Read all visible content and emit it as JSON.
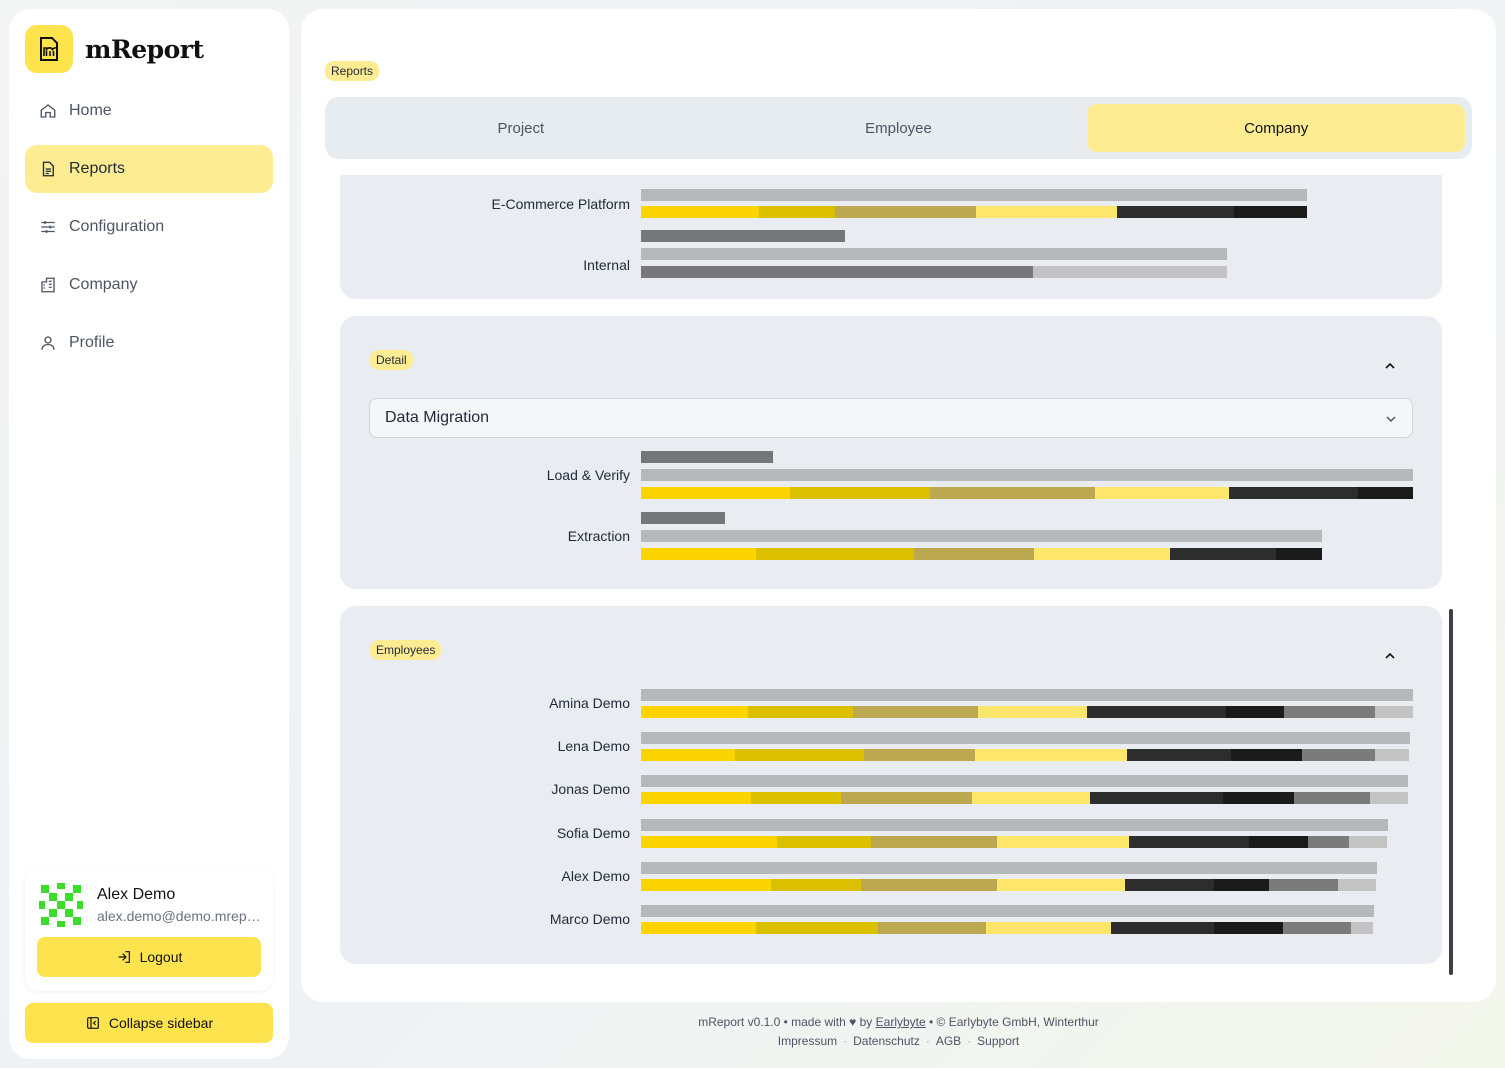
{
  "app": {
    "name": "mReport"
  },
  "sidebar": {
    "items": [
      {
        "label": "Home",
        "icon": "home-icon",
        "active": false
      },
      {
        "label": "Reports",
        "icon": "report-icon",
        "active": true
      },
      {
        "label": "Configuration",
        "icon": "sliders-icon",
        "active": false
      },
      {
        "label": "Company",
        "icon": "building-icon",
        "active": false
      },
      {
        "label": "Profile",
        "icon": "user-icon",
        "active": false
      }
    ],
    "user": {
      "name": "Alex Demo",
      "email": "alex.demo@demo.mreport.ch"
    },
    "logout_label": "Logout",
    "collapse_label": "Collapse sidebar"
  },
  "main": {
    "badge": "Reports",
    "tabs": [
      {
        "label": "Project",
        "active": false
      },
      {
        "label": "Employee",
        "active": false
      },
      {
        "label": "Company",
        "active": true
      }
    ]
  },
  "colors": {
    "accent": "#fde34d",
    "accent_light": "#fdec92",
    "seg_palette": [
      "#fcd400",
      "#dbc000",
      "#bca850",
      "#fde76b",
      "#2d2d2d",
      "#1a1a1a",
      "#7b7b7b",
      "#c3c3c3"
    ],
    "bar_total": "#b7b8bc",
    "bar_dark": "#75767a"
  },
  "chart_data": [
    {
      "type": "bar",
      "section": "projects",
      "rows": [
        {
          "label": "E-Commerce Platform",
          "total": 0.863,
          "segments": [
            0.153,
            0.098,
            0.183,
            0.184,
            0.151,
            0.094
          ]
        },
        {
          "label": "Internal",
          "budget": 0.264,
          "total": 0.759,
          "progress": [
            0.508,
            0.251
          ]
        }
      ]
    },
    {
      "type": "bar",
      "section": "Detail",
      "selected": "Data Migration",
      "rows": [
        {
          "label": "Load & Verify",
          "budget": 0.171,
          "total": 1.0,
          "segments": [
            0.193,
            0.181,
            0.214,
            0.174,
            0.167,
            0.071
          ]
        },
        {
          "label": "Extraction",
          "budget": 0.109,
          "total": 0.882,
          "segments": [
            0.149,
            0.205,
            0.155,
            0.176,
            0.137,
            0.06
          ]
        }
      ]
    },
    {
      "type": "bar",
      "section": "Employees",
      "rows": [
        {
          "label": "Amina Demo",
          "total": 1.0,
          "segments": [
            0.139,
            0.136,
            0.162,
            0.141,
            0.18,
            0.075,
            0.118,
            0.049
          ]
        },
        {
          "label": "Lena Demo",
          "total": 0.996,
          "segments": [
            0.122,
            0.167,
            0.144,
            0.197,
            0.135,
            0.092,
            0.095,
            0.044
          ]
        },
        {
          "label": "Jonas Demo",
          "total": 0.994,
          "segments": [
            0.142,
            0.117,
            0.17,
            0.153,
            0.172,
            0.092,
            0.099,
            0.049
          ]
        },
        {
          "label": "Sofia Demo",
          "total": 0.968,
          "segments": [
            0.176,
            0.122,
            0.163,
            0.171,
            0.155,
            0.076,
            0.053,
            0.049
          ]
        },
        {
          "label": "Alex Demo",
          "total": 0.954,
          "segments": [
            0.168,
            0.117,
            0.176,
            0.166,
            0.115,
            0.071,
            0.089,
            0.049
          ]
        },
        {
          "label": "Marco Demo",
          "total": 0.95,
          "segments": [
            0.149,
            0.158,
            0.14,
            0.162,
            0.134,
            0.09,
            0.088,
            0.029
          ]
        }
      ]
    }
  ],
  "sections": {
    "detail": {
      "badge": "Detail",
      "select_value": "Data Migration"
    },
    "employees": {
      "badge": "Employees"
    }
  },
  "footer": {
    "line1_pre": "mReport v0.1.0 • made with ♥ by",
    "link": "Earlybyte",
    "line1_post": "• © Earlybyte GmbH, Winterthur",
    "links": [
      "Impressum",
      "Datenschutz",
      "AGB",
      "Support"
    ]
  }
}
